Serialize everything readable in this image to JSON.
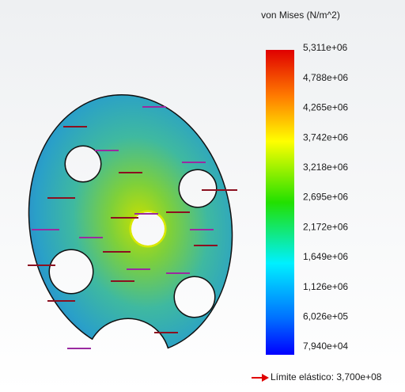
{
  "legend": {
    "title": "von Mises (N/m^2)",
    "labels": [
      "5,311e+06",
      "4,788e+06",
      "4,265e+06",
      "3,742e+06",
      "3,218e+06",
      "2,695e+06",
      "2,172e+06",
      "1,649e+06",
      "1,126e+06",
      "6,026e+05",
      "7,940e+04"
    ]
  },
  "yield_label": "Límite elástico: 3,700e+08"
}
